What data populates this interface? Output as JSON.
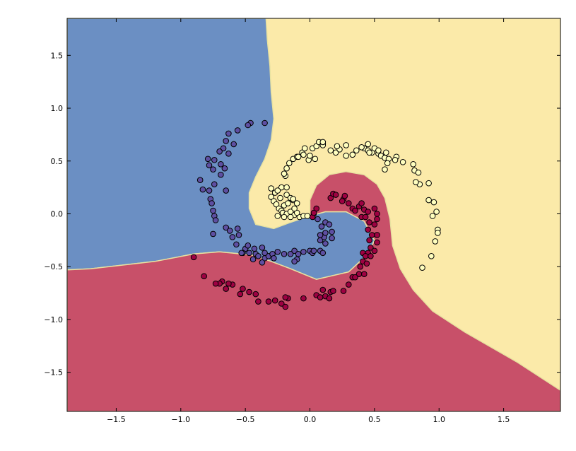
{
  "chart_data": {
    "type": "scatter",
    "title": "",
    "xlabel": "",
    "ylabel": "",
    "xlim": [
      -1.88,
      1.94
    ],
    "ylim": [
      -1.87,
      1.85
    ],
    "x_ticks": [
      -1.5,
      -1.0,
      -0.5,
      0.0,
      0.5,
      1.0,
      1.5
    ],
    "x_tick_labels": [
      "−1.5",
      "−1.0",
      "−0.5",
      "0.0",
      "0.5",
      "1.0",
      "1.5"
    ],
    "y_ticks": [
      1.5,
      1.0,
      0.5,
      0.0,
      -0.5,
      -1.0,
      -1.5
    ],
    "y_tick_labels": [
      "1.5",
      "1.0",
      "0.5",
      "0.0",
      "−0.5",
      "−1.0",
      "−1.5"
    ],
    "grid": false,
    "legend": "none",
    "decision_regions": [
      {
        "class": 0,
        "color": "#6b8fc3",
        "boundary": [
          [
            -1.88,
            -0.53
          ],
          [
            -1.7,
            -0.52
          ],
          [
            -1.2,
            -0.45
          ],
          [
            -0.9,
            -0.38
          ],
          [
            -0.7,
            -0.36
          ],
          [
            -0.45,
            -0.39
          ],
          [
            -0.3,
            -0.45
          ],
          [
            -0.15,
            -0.52
          ],
          [
            0.05,
            -0.62
          ],
          [
            0.3,
            -0.55
          ],
          [
            0.45,
            -0.38
          ],
          [
            0.5,
            -0.25
          ],
          [
            0.42,
            -0.07
          ],
          [
            0.28,
            0.02
          ],
          [
            0.12,
            0.02
          ],
          [
            0.0,
            -0.02
          ],
          [
            -0.15,
            -0.08
          ],
          [
            -0.28,
            -0.14
          ],
          [
            -0.42,
            -0.1
          ],
          [
            -0.47,
            0.05
          ],
          [
            -0.47,
            0.2
          ],
          [
            -0.42,
            0.35
          ],
          [
            -0.35,
            0.52
          ],
          [
            -0.3,
            0.7
          ],
          [
            -0.28,
            0.9
          ],
          [
            -0.3,
            1.15
          ],
          [
            -0.31,
            1.4
          ],
          [
            -0.33,
            1.65
          ],
          [
            -0.34,
            1.85
          ],
          [
            -1.88,
            1.85
          ]
        ]
      },
      {
        "class": 1,
        "color": "#c85069",
        "boundary": [
          [
            -1.88,
            -1.87
          ],
          [
            1.94,
            -1.87
          ],
          [
            1.94,
            -1.67
          ],
          [
            1.6,
            -1.4
          ],
          [
            1.2,
            -1.12
          ],
          [
            0.95,
            -0.92
          ],
          [
            0.8,
            -0.72
          ],
          [
            0.7,
            -0.52
          ],
          [
            0.64,
            -0.3
          ],
          [
            0.62,
            -0.05
          ],
          [
            0.58,
            0.15
          ],
          [
            0.52,
            0.28
          ],
          [
            0.42,
            0.37
          ],
          [
            0.28,
            0.4
          ],
          [
            0.15,
            0.37
          ],
          [
            0.05,
            0.27
          ],
          [
            0.0,
            0.13
          ],
          [
            0.0,
            -0.02
          ],
          [
            0.12,
            0.02
          ],
          [
            0.28,
            0.02
          ],
          [
            0.42,
            -0.07
          ],
          [
            0.5,
            -0.25
          ],
          [
            0.45,
            -0.38
          ],
          [
            0.3,
            -0.55
          ],
          [
            0.05,
            -0.62
          ],
          [
            -0.15,
            -0.52
          ],
          [
            -0.3,
            -0.45
          ],
          [
            -0.45,
            -0.39
          ],
          [
            -0.7,
            -0.36
          ],
          [
            -0.9,
            -0.38
          ],
          [
            -1.2,
            -0.45
          ],
          [
            -1.7,
            -0.52
          ],
          [
            -1.88,
            -0.53
          ]
        ]
      },
      {
        "class": 2,
        "color": "#fbeaa9"
      }
    ],
    "boundary_line_color": "#e8e2a0",
    "series": [
      {
        "class": 0,
        "color": "#5e4fa2",
        "points": [
          [
            -0.46,
            0.86
          ],
          [
            -0.48,
            0.84
          ],
          [
            -0.35,
            0.86
          ],
          [
            -0.56,
            0.79
          ],
          [
            -0.63,
            0.76
          ],
          [
            -0.65,
            0.69
          ],
          [
            -0.59,
            0.66
          ],
          [
            -0.67,
            0.62
          ],
          [
            -0.7,
            0.59
          ],
          [
            -0.63,
            0.57
          ],
          [
            -0.79,
            0.52
          ],
          [
            -0.74,
            0.51
          ],
          [
            -0.69,
            0.47
          ],
          [
            -0.66,
            0.43
          ],
          [
            -0.78,
            0.46
          ],
          [
            -0.75,
            0.42
          ],
          [
            -0.69,
            0.37
          ],
          [
            -0.85,
            0.32
          ],
          [
            -0.74,
            0.28
          ],
          [
            -0.78,
            0.22
          ],
          [
            -0.65,
            0.22
          ],
          [
            -0.83,
            0.23
          ],
          [
            -0.77,
            0.14
          ],
          [
            -0.76,
            0.1
          ],
          [
            -0.75,
            0.03
          ],
          [
            -0.74,
            -0.02
          ],
          [
            -0.73,
            -0.06
          ],
          [
            -0.65,
            -0.13
          ],
          [
            -0.75,
            -0.19
          ],
          [
            -0.62,
            -0.16
          ],
          [
            -0.56,
            -0.14
          ],
          [
            -0.6,
            -0.22
          ],
          [
            -0.55,
            -0.2
          ],
          [
            -0.5,
            -0.33
          ],
          [
            -0.43,
            -0.33
          ],
          [
            -0.52,
            -0.37
          ],
          [
            -0.47,
            -0.37
          ],
          [
            -0.57,
            -0.29
          ],
          [
            -0.53,
            -0.37
          ],
          [
            -0.42,
            -0.38
          ],
          [
            -0.35,
            -0.42
          ],
          [
            -0.32,
            -0.4
          ],
          [
            -0.29,
            -0.38
          ],
          [
            -0.25,
            -0.36
          ],
          [
            -0.2,
            -0.38
          ],
          [
            -0.15,
            -0.38
          ],
          [
            -0.12,
            -0.35
          ],
          [
            -0.09,
            -0.38
          ],
          [
            -0.1,
            -0.43
          ],
          [
            -0.05,
            -0.36
          ],
          [
            0.0,
            -0.35
          ],
          [
            0.02,
            -0.37
          ],
          [
            0.03,
            -0.35
          ],
          [
            0.08,
            -0.35
          ],
          [
            0.1,
            -0.37
          ],
          [
            0.12,
            -0.28
          ],
          [
            0.08,
            -0.25
          ],
          [
            0.11,
            -0.22
          ],
          [
            0.08,
            -0.2
          ],
          [
            0.12,
            -0.18
          ],
          [
            0.09,
            -0.12
          ],
          [
            0.12,
            -0.08
          ],
          [
            0.15,
            -0.1
          ],
          [
            0.17,
            -0.17
          ],
          [
            0.17,
            -0.23
          ],
          [
            0.06,
            -0.05
          ],
          [
            0.03,
            0.0
          ],
          [
            -0.4,
            -0.4
          ],
          [
            -0.37,
            -0.32
          ],
          [
            -0.48,
            -0.3
          ],
          [
            -0.37,
            -0.46
          ],
          [
            -0.12,
            -0.45
          ],
          [
            -0.44,
            -0.43
          ],
          [
            -0.35,
            -0.37
          ],
          [
            -0.28,
            -0.42
          ]
        ]
      },
      {
        "class": 1,
        "color": "#9e0142",
        "points": [
          [
            0.16,
            0.15
          ],
          [
            0.18,
            0.19
          ],
          [
            0.2,
            0.18
          ],
          [
            0.26,
            0.14
          ],
          [
            0.27,
            0.17
          ],
          [
            0.3,
            0.1
          ],
          [
            0.33,
            0.05
          ],
          [
            0.35,
            0.03
          ],
          [
            0.38,
            0.07
          ],
          [
            0.4,
            0.1
          ],
          [
            0.42,
            0.04
          ],
          [
            0.4,
            -0.03
          ],
          [
            0.43,
            -0.03
          ],
          [
            0.45,
            0.02
          ],
          [
            0.5,
            0.05
          ],
          [
            0.52,
            0.0
          ],
          [
            0.52,
            -0.05
          ],
          [
            0.5,
            -0.1
          ],
          [
            0.46,
            -0.08
          ],
          [
            0.45,
            -0.15
          ],
          [
            0.48,
            -0.2
          ],
          [
            0.52,
            -0.2
          ],
          [
            0.46,
            -0.25
          ],
          [
            0.52,
            -0.27
          ],
          [
            0.47,
            -0.32
          ],
          [
            0.5,
            -0.35
          ],
          [
            0.41,
            -0.37
          ],
          [
            0.45,
            -0.37
          ],
          [
            0.43,
            -0.4
          ],
          [
            0.47,
            -0.4
          ],
          [
            0.41,
            -0.45
          ],
          [
            0.44,
            -0.47
          ],
          [
            0.39,
            -0.5
          ],
          [
            0.38,
            -0.57
          ],
          [
            0.42,
            -0.57
          ],
          [
            0.33,
            -0.6
          ],
          [
            0.3,
            -0.67
          ],
          [
            0.26,
            -0.73
          ],
          [
            0.16,
            -0.74
          ],
          [
            0.18,
            -0.73
          ],
          [
            0.12,
            -0.78
          ],
          [
            0.15,
            -0.8
          ],
          [
            0.05,
            -0.77
          ],
          [
            0.1,
            -0.72
          ],
          [
            -0.05,
            -0.8
          ],
          [
            -0.17,
            -0.8
          ],
          [
            -0.19,
            -0.79
          ],
          [
            -0.22,
            -0.85
          ],
          [
            -0.27,
            -0.82
          ],
          [
            -0.32,
            -0.83
          ],
          [
            -0.4,
            -0.83
          ],
          [
            -0.42,
            -0.76
          ],
          [
            -0.47,
            -0.74
          ],
          [
            -0.54,
            -0.76
          ],
          [
            -0.52,
            -0.71
          ],
          [
            -0.6,
            -0.67
          ],
          [
            -0.63,
            -0.66
          ],
          [
            -0.65,
            -0.71
          ],
          [
            -0.68,
            -0.64
          ],
          [
            -0.7,
            -0.66
          ],
          [
            -0.73,
            -0.66
          ],
          [
            -0.82,
            -0.59
          ],
          [
            -0.9,
            -0.41
          ],
          [
            0.05,
            0.05
          ],
          [
            0.02,
            -0.03
          ],
          [
            0.03,
            0.01
          ],
          [
            -0.19,
            -0.88
          ],
          [
            0.08,
            -0.79
          ],
          [
            0.35,
            -0.6
          ],
          [
            0.25,
            0.12
          ]
        ]
      },
      {
        "class": 2,
        "color": "#ffffbf",
        "points": [
          [
            -0.3,
            0.24
          ],
          [
            -0.27,
            0.2
          ],
          [
            -0.3,
            0.16
          ],
          [
            -0.28,
            0.12
          ],
          [
            -0.26,
            0.09
          ],
          [
            -0.24,
            0.05
          ],
          [
            -0.22,
            0.03
          ],
          [
            -0.21,
            0.01
          ],
          [
            -0.18,
            0.0
          ],
          [
            -0.15,
            0.02
          ],
          [
            -0.12,
            -0.01
          ],
          [
            -0.08,
            -0.03
          ],
          [
            -0.05,
            -0.02
          ],
          [
            -0.02,
            -0.02
          ],
          [
            -0.2,
            0.08
          ],
          [
            -0.18,
            0.18
          ],
          [
            -0.15,
            0.15
          ],
          [
            -0.13,
            0.13
          ],
          [
            -0.1,
            0.1
          ],
          [
            -0.1,
            0.01
          ],
          [
            -0.12,
            0.05
          ],
          [
            -0.19,
            0.36
          ],
          [
            -0.18,
            0.43
          ],
          [
            -0.16,
            0.48
          ],
          [
            -0.13,
            0.52
          ],
          [
            -0.1,
            0.54
          ],
          [
            -0.06,
            0.58
          ],
          [
            -0.01,
            0.51
          ],
          [
            -0.04,
            0.62
          ],
          [
            0.02,
            0.62
          ],
          [
            0.05,
            0.64
          ],
          [
            0.07,
            0.68
          ],
          [
            0.1,
            0.66
          ],
          [
            0.16,
            0.6
          ],
          [
            0.2,
            0.58
          ],
          [
            0.23,
            0.61
          ],
          [
            0.28,
            0.65
          ],
          [
            0.33,
            0.56
          ],
          [
            0.36,
            0.6
          ],
          [
            0.42,
            0.62
          ],
          [
            0.45,
            0.6
          ],
          [
            0.48,
            0.58
          ],
          [
            0.5,
            0.62
          ],
          [
            0.53,
            0.57
          ],
          [
            0.55,
            0.55
          ],
          [
            0.58,
            0.53
          ],
          [
            0.61,
            0.52
          ],
          [
            0.6,
            0.48
          ],
          [
            0.58,
            0.42
          ],
          [
            0.67,
            0.54
          ],
          [
            0.66,
            0.51
          ],
          [
            0.72,
            0.49
          ],
          [
            0.8,
            0.47
          ],
          [
            0.81,
            0.41
          ],
          [
            0.84,
            0.39
          ],
          [
            0.85,
            0.28
          ],
          [
            0.82,
            0.3
          ],
          [
            0.92,
            0.29
          ],
          [
            0.92,
            0.13
          ],
          [
            0.96,
            0.11
          ],
          [
            0.98,
            0.02
          ],
          [
            0.95,
            -0.02
          ],
          [
            0.99,
            -0.15
          ],
          [
            0.99,
            -0.18
          ],
          [
            0.97,
            -0.26
          ],
          [
            0.94,
            -0.4
          ],
          [
            0.87,
            -0.51
          ],
          [
            0.53,
            0.6
          ],
          [
            0.45,
            0.66
          ],
          [
            0.4,
            0.63
          ],
          [
            0.28,
            0.55
          ],
          [
            0.1,
            0.65
          ],
          [
            0.0,
            0.55
          ],
          [
            -0.05,
            0.56
          ],
          [
            -0.2,
            0.38
          ],
          [
            -0.22,
            0.25
          ],
          [
            -0.25,
            0.22
          ],
          [
            -0.18,
            0.25
          ],
          [
            -0.13,
            0.14
          ],
          [
            -0.2,
            -0.03
          ],
          [
            -0.15,
            -0.03
          ],
          [
            -0.25,
            -0.02
          ],
          [
            0.1,
            0.68
          ],
          [
            0.21,
            0.64
          ],
          [
            0.59,
            0.58
          ],
          [
            0.46,
            0.58
          ],
          [
            0.04,
            0.52
          ],
          [
            -0.09,
            0.54
          ],
          [
            -0.23,
            0.15
          ],
          [
            -0.17,
            0.1
          ]
        ]
      }
    ]
  }
}
